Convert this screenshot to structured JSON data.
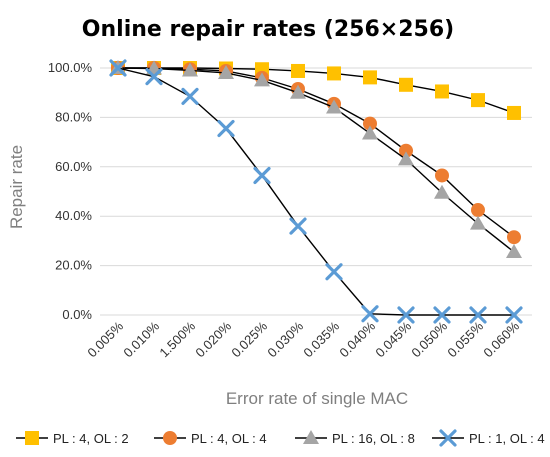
{
  "chart_data": {
    "type": "line",
    "title": "Online repair rates (256×256)",
    "xlabel": "Error rate of single MAC",
    "ylabel": "Repair rate",
    "categories": [
      "0.005%",
      "0.010%",
      "1.500%",
      "0.020%",
      "0.025%",
      "0.030%",
      "0.035%",
      "0.040%",
      "0.045%",
      "0.050%",
      "0.055%",
      "0.060%"
    ],
    "ylim": [
      0,
      100
    ],
    "yticks": [
      "0.0%",
      "20.0%",
      "40.0%",
      "60.0%",
      "80.0%",
      "100.0%"
    ],
    "ytick_values": [
      0,
      20,
      40,
      60,
      80,
      100
    ],
    "grid": "horizontal",
    "legend_position": "bottom",
    "series": [
      {
        "name": "PL : 4, OL : 2",
        "marker": "square",
        "color": "#FFC000",
        "values": [
          100,
          100,
          100,
          99.8,
          99.5,
          98.8,
          97.8,
          96.2,
          93.2,
          90.5,
          87.0,
          81.8
        ]
      },
      {
        "name": "PL : 4, OL : 4",
        "marker": "circle",
        "color": "#ED7D31",
        "values": [
          100,
          100,
          99.5,
          98.8,
          96.0,
          91.5,
          85.5,
          77.5,
          66.5,
          56.5,
          42.5,
          31.5
        ]
      },
      {
        "name": "PL : 16, OL : 8",
        "marker": "triangle",
        "color": "#A5A5A5",
        "values": [
          100,
          99.8,
          99.0,
          98.0,
          95.0,
          90.0,
          84.0,
          73.5,
          63.0,
          49.5,
          37.0,
          25.5
        ]
      },
      {
        "name": "PL : 1, OL : 4",
        "marker": "x",
        "color": "#5B9BD5",
        "values": [
          100,
          96.5,
          88.5,
          75.5,
          56.5,
          36.0,
          17.5,
          0.5,
          0,
          0,
          0,
          0
        ]
      }
    ]
  }
}
